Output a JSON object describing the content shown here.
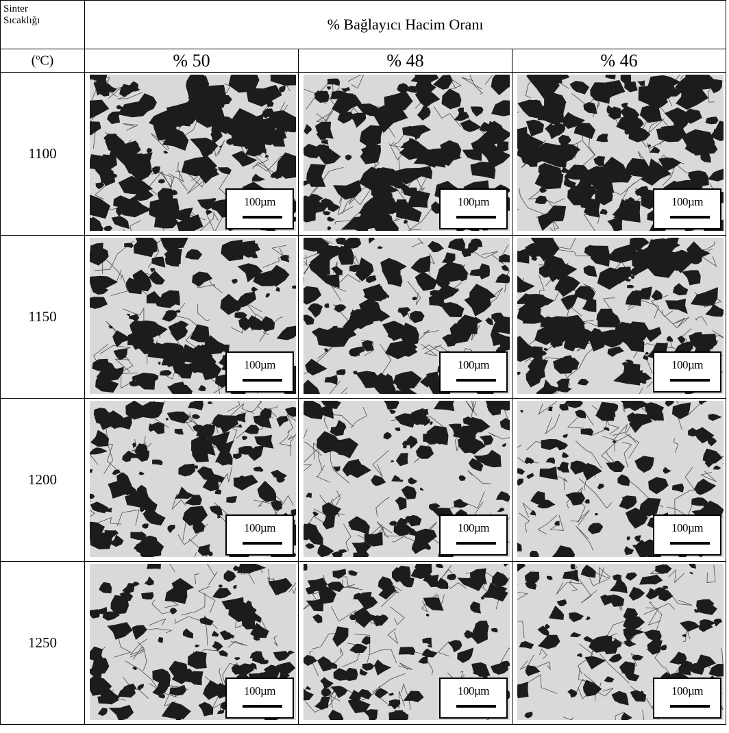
{
  "header": {
    "corner_line1": "Sinter",
    "corner_line2": "Sıcaklığı",
    "title": "% Bağlayıcı Hacim Oranı",
    "unit": "(°C)"
  },
  "columns": [
    "% 50",
    "% 48",
    "% 46"
  ],
  "rows": [
    {
      "temperature": "1100",
      "dark_fraction": 0.55,
      "images": [
        {
          "scale": "100µm",
          "seed": 11,
          "dark": 0.6
        },
        {
          "scale": "100µm",
          "seed": 12,
          "dark": 0.48
        },
        {
          "scale": "100µm",
          "seed": 13,
          "dark": 0.52
        }
      ]
    },
    {
      "temperature": "1150",
      "dark_fraction": 0.42,
      "images": [
        {
          "scale": "100µm",
          "seed": 21,
          "dark": 0.4
        },
        {
          "scale": "100µm",
          "seed": 22,
          "dark": 0.44
        },
        {
          "scale": "100µm",
          "seed": 23,
          "dark": 0.5
        }
      ]
    },
    {
      "temperature": "1200",
      "dark_fraction": 0.32,
      "images": [
        {
          "scale": "100µm",
          "seed": 31,
          "dark": 0.36
        },
        {
          "scale": "100µm",
          "seed": 32,
          "dark": 0.3
        },
        {
          "scale": "100µm",
          "seed": 33,
          "dark": 0.28
        }
      ]
    },
    {
      "temperature": "1250",
      "dark_fraction": 0.25,
      "images": [
        {
          "scale": "100µm",
          "seed": 41,
          "dark": 0.3
        },
        {
          "scale": "100µm",
          "seed": 42,
          "dark": 0.26
        },
        {
          "scale": "100µm",
          "seed": 43,
          "dark": 0.2
        }
      ]
    }
  ],
  "colors": {
    "phase_dark": "#1c1c1c",
    "phase_light": "#d9d9d9",
    "boundary": "#4a4a4a"
  }
}
